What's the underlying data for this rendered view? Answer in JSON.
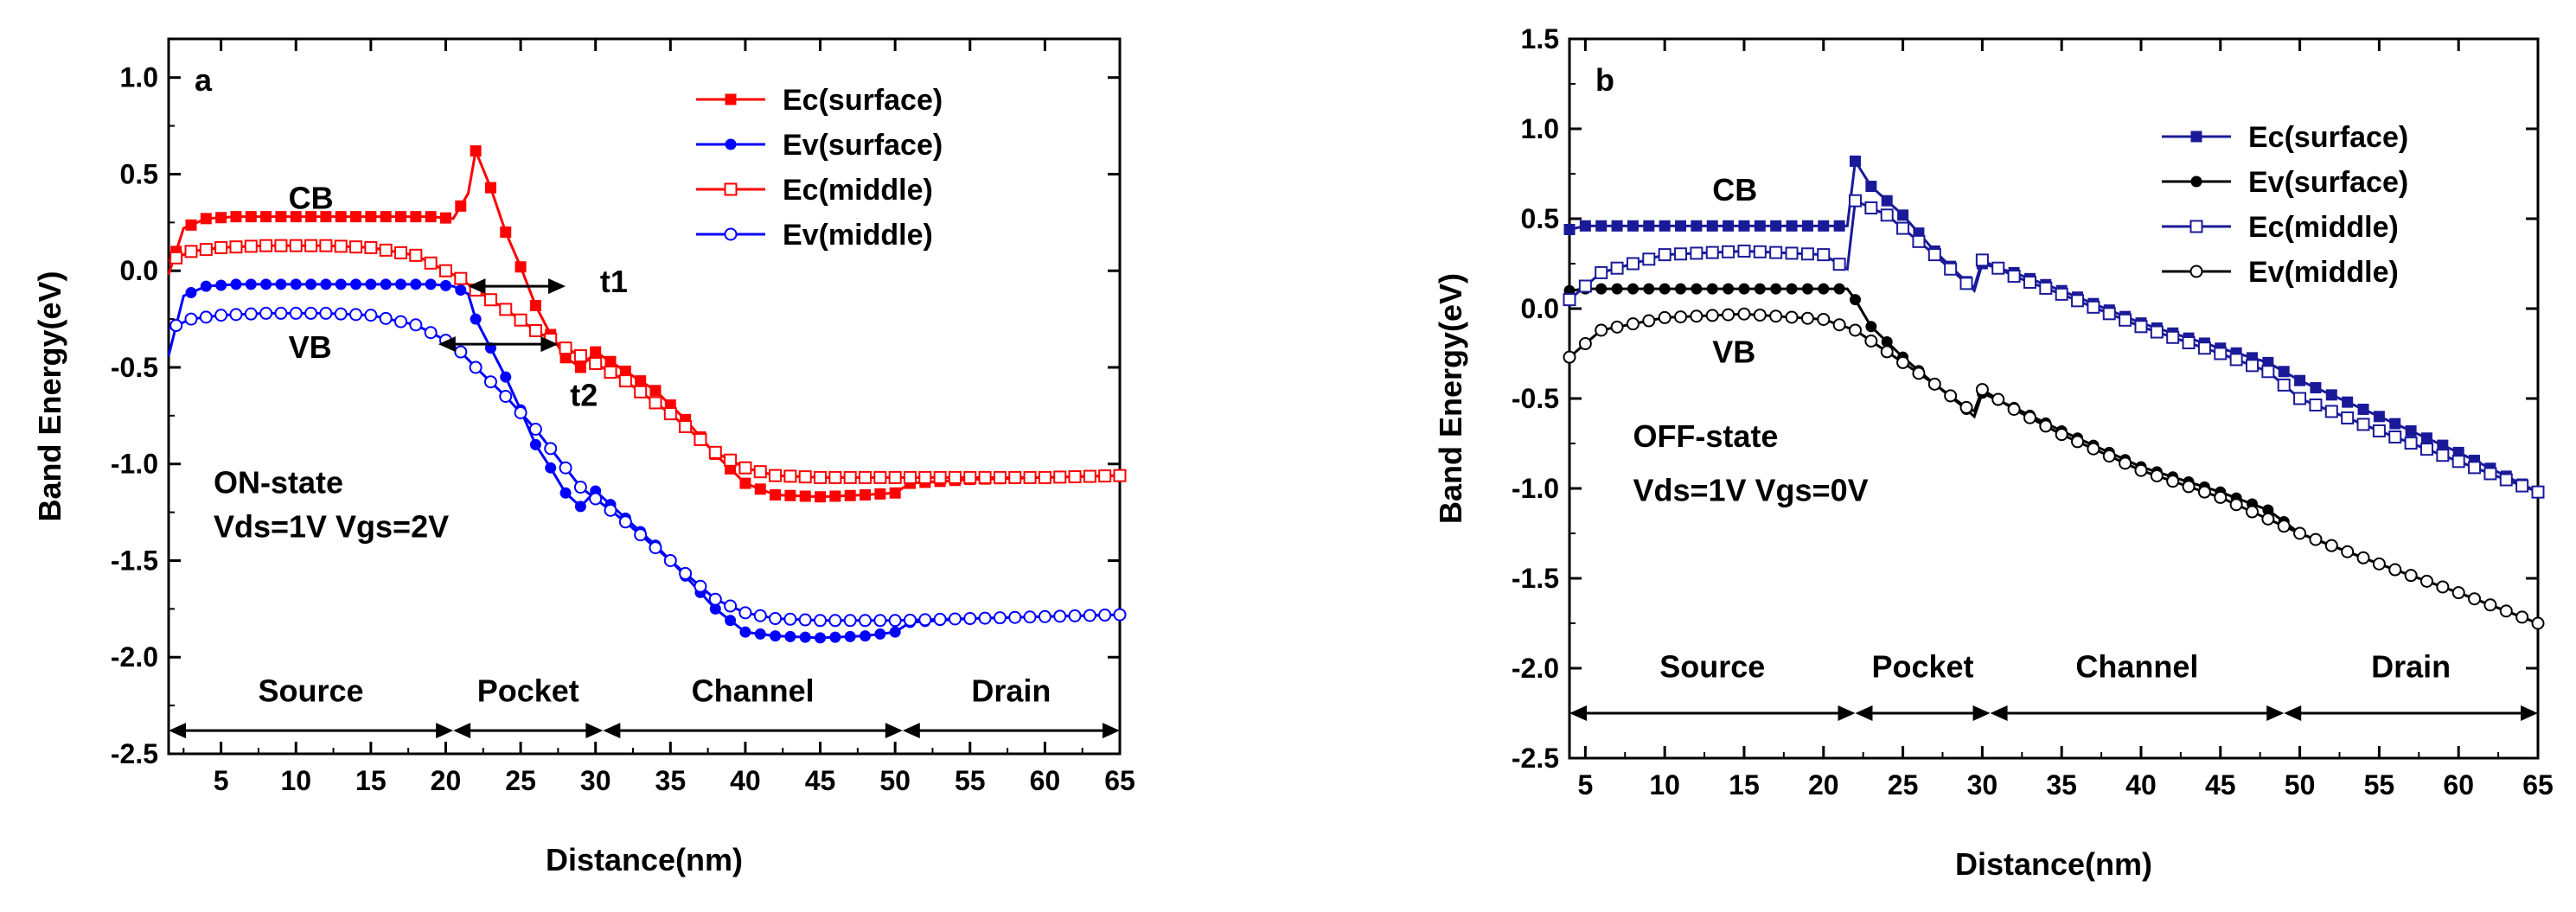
{
  "chart_data": [
    {
      "type": "line",
      "panel_label": "a",
      "xlabel": "Distance(nm)",
      "ylabel": "Band Energy(eV)",
      "xlim": [
        1.5,
        65
      ],
      "ylim": [
        -2.5,
        1.2
      ],
      "x_ticks": [
        5,
        10,
        15,
        20,
        25,
        30,
        35,
        40,
        45,
        50,
        55,
        60,
        65
      ],
      "y_ticks": [
        -2.5,
        -2.0,
        -1.5,
        -1.0,
        -0.5,
        0.0,
        0.5,
        1.0
      ],
      "legend_position": "top-right",
      "series": [
        {
          "name": "Ec(surface)",
          "color": "#ff0000",
          "marker": "filled-square",
          "x": [
            1.5,
            2.5,
            4,
            6,
            10,
            15,
            19,
            20.5,
            21.5,
            22,
            23,
            24,
            25,
            26,
            27,
            28,
            29,
            30,
            32,
            34,
            36,
            38,
            40,
            42,
            45,
            48,
            50,
            51,
            55,
            60,
            65
          ],
          "y": [
            -0.02,
            0.22,
            0.27,
            0.28,
            0.28,
            0.28,
            0.28,
            0.27,
            0.4,
            0.62,
            0.43,
            0.2,
            0.02,
            -0.18,
            -0.33,
            -0.45,
            -0.5,
            -0.42,
            -0.52,
            -0.62,
            -0.77,
            -0.95,
            -1.1,
            -1.16,
            -1.17,
            -1.16,
            -1.15,
            -1.1,
            -1.08,
            -1.07,
            -1.06
          ]
        },
        {
          "name": "Ev(surface)",
          "color": "#0000ff",
          "marker": "filled-circle",
          "x": [
            1.5,
            2.5,
            4,
            6,
            10,
            15,
            19,
            20.5,
            21.5,
            22,
            23,
            24,
            25,
            26,
            27,
            28,
            29,
            30,
            32,
            34,
            36,
            38,
            40,
            42,
            45,
            48,
            50,
            51,
            55,
            60,
            65
          ],
          "y": [
            -0.44,
            -0.13,
            -0.08,
            -0.07,
            -0.07,
            -0.07,
            -0.07,
            -0.08,
            -0.12,
            -0.25,
            -0.4,
            -0.55,
            -0.72,
            -0.9,
            -1.02,
            -1.15,
            -1.22,
            -1.14,
            -1.28,
            -1.42,
            -1.58,
            -1.75,
            -1.87,
            -1.89,
            -1.9,
            -1.89,
            -1.87,
            -1.82,
            -1.8,
            -1.79,
            -1.78
          ]
        },
        {
          "name": "Ec(middle)",
          "color": "#ff0000",
          "marker": "open-square",
          "x": [
            1.5,
            3,
            5,
            8,
            12,
            15,
            18,
            20,
            21,
            22,
            24,
            26,
            28,
            29,
            30,
            32,
            35,
            38,
            40,
            42,
            45,
            50,
            55,
            60,
            65
          ],
          "y": [
            0.05,
            0.1,
            0.12,
            0.13,
            0.13,
            0.12,
            0.08,
            0.0,
            -0.04,
            -0.1,
            -0.2,
            -0.31,
            -0.4,
            -0.44,
            -0.48,
            -0.57,
            -0.74,
            -0.94,
            -1.02,
            -1.06,
            -1.07,
            -1.07,
            -1.07,
            -1.07,
            -1.06
          ]
        },
        {
          "name": "Ev(middle)",
          "color": "#0000ff",
          "marker": "open-circle",
          "x": [
            1.5,
            3,
            5,
            8,
            12,
            15,
            18,
            20,
            21,
            22,
            24,
            26,
            28,
            29,
            30,
            32,
            35,
            38,
            40,
            42,
            45,
            50,
            55,
            60,
            65
          ],
          "y": [
            -0.3,
            -0.25,
            -0.23,
            -0.22,
            -0.22,
            -0.23,
            -0.28,
            -0.36,
            -0.42,
            -0.5,
            -0.65,
            -0.82,
            -1.02,
            -1.12,
            -1.18,
            -1.3,
            -1.5,
            -1.7,
            -1.77,
            -1.8,
            -1.81,
            -1.81,
            -1.8,
            -1.79,
            -1.78
          ]
        }
      ],
      "annotations": [
        {
          "text": "CB",
          "x": 9.5,
          "y": 0.32
        },
        {
          "text": "VB",
          "x": 9.5,
          "y": -0.45
        },
        {
          "text": "t1",
          "x": 30.3,
          "y": -0.11
        },
        {
          "text": "t2",
          "x": 28.3,
          "y": -0.7
        },
        {
          "text": "ON-state",
          "x": 4.5,
          "y": -1.15
        },
        {
          "text": "Vds=1V Vgs=2V",
          "x": 4.5,
          "y": -1.38
        }
      ],
      "arrows": [
        {
          "x1": 21.5,
          "x2": 28,
          "y": -0.08
        },
        {
          "x1": 19.5,
          "x2": 27.5,
          "y": -0.38
        }
      ],
      "regions": [
        {
          "label": "Source",
          "x1": 1.5,
          "x2": 20.5
        },
        {
          "label": "Pocket",
          "x1": 20.5,
          "x2": 30.5
        },
        {
          "label": "Channel",
          "x1": 30.5,
          "x2": 50.5
        },
        {
          "label": "Drain",
          "x1": 50.5,
          "x2": 65
        }
      ],
      "region_arrow_y": -2.38,
      "region_label_y": -2.23
    },
    {
      "type": "line",
      "panel_label": "b",
      "xlabel": "Distance(nm)",
      "ylabel": "Band Energy(eV)",
      "xlim": [
        4,
        65
      ],
      "ylim": [
        -2.5,
        1.5
      ],
      "x_ticks": [
        5,
        10,
        15,
        20,
        25,
        30,
        35,
        40,
        45,
        50,
        55,
        60,
        65
      ],
      "y_ticks": [
        -2.5,
        -2.0,
        -1.5,
        -1.0,
        -0.5,
        0.0,
        0.5,
        1.0,
        1.5
      ],
      "legend_position": "top-right",
      "series": [
        {
          "name": "Ec(surface)",
          "color": "#1a1a99",
          "marker": "filled-square",
          "x": [
            4,
            5,
            10,
            15,
            21.5,
            22,
            23,
            25,
            27,
            29,
            29.5,
            30,
            32,
            35,
            40,
            45,
            48,
            50,
            55,
            60,
            65
          ],
          "y": [
            0.44,
            0.46,
            0.46,
            0.46,
            0.46,
            0.82,
            0.68,
            0.52,
            0.32,
            0.15,
            0.1,
            0.25,
            0.2,
            0.1,
            -0.08,
            -0.22,
            -0.3,
            -0.4,
            -0.6,
            -0.8,
            -1.02
          ]
        },
        {
          "name": "Ev(surface)",
          "color": "#000000",
          "marker": "filled-circle",
          "x": [
            4,
            5,
            10,
            15,
            20,
            21.5,
            22,
            23,
            25,
            27,
            29,
            29.5,
            30,
            32,
            35,
            40,
            45,
            48,
            50,
            55,
            60,
            65
          ],
          "y": [
            0.1,
            0.11,
            0.11,
            0.11,
            0.11,
            0.11,
            0.05,
            -0.1,
            -0.27,
            -0.42,
            -0.56,
            -0.6,
            -0.47,
            -0.55,
            -0.68,
            -0.88,
            -1.02,
            -1.12,
            -1.25,
            -1.42,
            -1.58,
            -1.75
          ]
        },
        {
          "name": "Ec(middle)",
          "color": "#1a1a99",
          "marker": "open-square",
          "x": [
            4,
            6,
            10,
            15,
            20,
            21.5,
            22,
            24,
            27,
            29,
            29.5,
            30,
            32,
            35,
            40,
            45,
            48,
            50,
            55,
            60,
            65
          ],
          "y": [
            0.05,
            0.2,
            0.3,
            0.32,
            0.3,
            0.22,
            0.6,
            0.52,
            0.3,
            0.14,
            0.12,
            0.27,
            0.18,
            0.08,
            -0.1,
            -0.25,
            -0.35,
            -0.5,
            -0.68,
            -0.85,
            -1.02
          ]
        },
        {
          "name": "Ev(middle)",
          "color": "#000000",
          "marker": "open-circle",
          "x": [
            4,
            6,
            10,
            15,
            20,
            22,
            24,
            27,
            29,
            29.5,
            30,
            32,
            35,
            40,
            45,
            50,
            55,
            60,
            65
          ],
          "y": [
            -0.27,
            -0.12,
            -0.05,
            -0.03,
            -0.06,
            -0.12,
            -0.24,
            -0.42,
            -0.55,
            -0.57,
            -0.45,
            -0.56,
            -0.7,
            -0.9,
            -1.05,
            -1.25,
            -1.42,
            -1.58,
            -1.75
          ]
        }
      ],
      "annotations": [
        {
          "text": "CB",
          "x": 13,
          "y": 0.6
        },
        {
          "text": "VB",
          "x": 13,
          "y": -0.3
        },
        {
          "text": "OFF-state",
          "x": 8,
          "y": -0.77
        },
        {
          "text": "Vds=1V Vgs=0V",
          "x": 8,
          "y": -1.07
        }
      ],
      "arrows": [],
      "regions": [
        {
          "label": "Source",
          "x1": 4,
          "x2": 22
        },
        {
          "label": "Pocket",
          "x1": 22,
          "x2": 30.5
        },
        {
          "label": "Channel",
          "x1": 30.5,
          "x2": 49
        },
        {
          "label": "Drain",
          "x1": 49,
          "x2": 65
        }
      ],
      "region_arrow_y": -2.25,
      "region_label_y": -2.05
    }
  ]
}
